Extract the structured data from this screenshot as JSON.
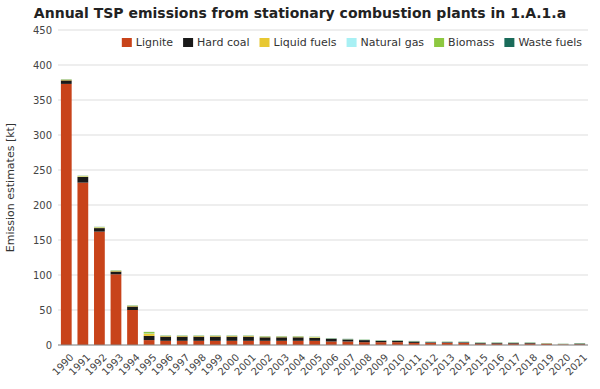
{
  "chart_data": {
    "type": "bar",
    "stacked": true,
    "title": "Annual TSP emissions from stationary combustion plants in 1.A.1.a",
    "ylabel": "Emission estimates [kt]",
    "categories": [
      1990,
      1991,
      1992,
      1993,
      1994,
      1995,
      1996,
      1997,
      1998,
      1999,
      2000,
      2001,
      2002,
      2003,
      2004,
      2005,
      2006,
      2007,
      2008,
      2009,
      2010,
      2011,
      2012,
      2013,
      2014,
      2015,
      2016,
      2017,
      2018,
      2019,
      2020,
      2021
    ],
    "series": [
      {
        "name": "Lignite",
        "color": "#C8431A",
        "values": [
          373,
          232,
          162,
          101,
          50,
          7,
          6,
          6,
          6,
          6,
          6,
          6,
          6,
          6,
          6,
          6,
          5,
          5,
          4,
          4,
          4,
          3,
          3,
          3,
          3,
          2,
          2,
          2,
          2,
          2,
          1,
          1
        ]
      },
      {
        "name": "Hard coal",
        "color": "#1A1A1A",
        "values": [
          5,
          8,
          5,
          4,
          5,
          6,
          6,
          6,
          6,
          6,
          6,
          6,
          5,
          5,
          5,
          4,
          4,
          3,
          3,
          2,
          2,
          2,
          1,
          1,
          1,
          1,
          1,
          1,
          1,
          0,
          0,
          1
        ]
      },
      {
        "name": "Liquid fuels",
        "color": "#E8C832",
        "values": [
          1,
          1,
          1,
          1,
          1,
          3,
          1,
          1,
          1,
          1,
          1,
          1,
          1,
          1,
          1,
          1,
          0,
          0,
          0,
          0,
          0,
          0,
          0,
          0,
          0,
          0,
          0,
          0,
          0,
          0,
          0,
          0
        ]
      },
      {
        "name": "Natural gas",
        "color": "#A8F0F4",
        "values": [
          0.3,
          0.3,
          0.3,
          0.3,
          0.3,
          0.5,
          0.3,
          0.3,
          0.3,
          0.3,
          0.3,
          0.3,
          0.3,
          0.3,
          0.3,
          0.3,
          0.3,
          0.3,
          0.3,
          0.3,
          0.3,
          0.3,
          0.3,
          0.3,
          0.3,
          0.3,
          0.3,
          0.3,
          0.3,
          0.3,
          0.3,
          0.3
        ]
      },
      {
        "name": "Biomass",
        "color": "#8DC840",
        "values": [
          0.3,
          0.3,
          0.3,
          0.3,
          0.3,
          2,
          0.3,
          0.3,
          0.3,
          0.3,
          0.3,
          0.3,
          0.3,
          0.3,
          0.3,
          0.3,
          0.3,
          0.3,
          0.3,
          0.3,
          0.3,
          0.3,
          0.3,
          0.3,
          0.3,
          0.3,
          0.3,
          0.3,
          0.3,
          0.3,
          0.3,
          0.3
        ]
      },
      {
        "name": "Waste fuels",
        "color": "#1A6B5A",
        "values": [
          0.2,
          0.2,
          0.2,
          0.2,
          0.2,
          0.2,
          0.2,
          0.2,
          0.2,
          0.2,
          0.2,
          0.2,
          0.2,
          0.2,
          0.2,
          0.2,
          0.2,
          0.2,
          0.2,
          0.2,
          0.2,
          0.2,
          0.2,
          0.2,
          0.2,
          0.2,
          0.2,
          0.2,
          0.2,
          0.2,
          0.2,
          0.2
        ]
      }
    ],
    "ylim": [
      0,
      450
    ],
    "yticks": [
      0,
      50,
      100,
      150,
      200,
      250,
      300,
      350,
      400,
      450
    ],
    "grid": true,
    "legend": "upper right"
  }
}
